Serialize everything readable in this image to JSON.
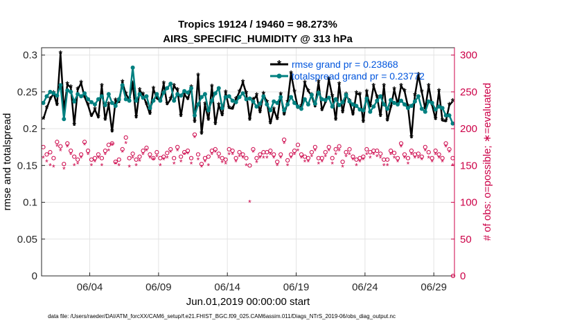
{
  "chart_data": {
    "type": "line",
    "title_line1": "Tropics 19124 / 19460 = 98.273%",
    "title_line2": "AIRS_SPECIFIC_HUMIDITY @ 313 hPa",
    "xlabel": "Jun.01,2019 00:00:00 start",
    "ylabel_left": "rmse and totalspread",
    "ylabel_right": "# of obs: o=possible; ∗=evaluated",
    "footnote": "data file: /Users/raeder/DAI/ATM_forcXX/CAM6_setup/f.e21.FHIST_BGC.f09_025.CAM6assim.011/Diags_NTrS_2019-06/obs_diag_output.nc",
    "xlim": [
      0.5,
      30.5
    ],
    "ylim_left": [
      0,
      0.31
    ],
    "ylim_right": [
      0,
      310
    ],
    "x_tick_values": [
      4,
      9,
      14,
      19,
      24,
      29
    ],
    "x_tick_labels": [
      "06/04",
      "06/09",
      "06/14",
      "06/19",
      "06/24",
      "06/29"
    ],
    "y_left_ticks": [
      "0",
      "0.05",
      "0.1",
      "0.15",
      "0.2",
      "0.25",
      "0.3"
    ],
    "y_left_tick_values": [
      0,
      0.05,
      0.1,
      0.15,
      0.2,
      0.25,
      0.3
    ],
    "y_right_ticks": [
      "0",
      "50",
      "100",
      "150",
      "200",
      "250",
      "300"
    ],
    "y_right_tick_values": [
      0,
      50,
      100,
      150,
      200,
      250,
      300
    ],
    "grid": true,
    "legend_position": "top-right",
    "x": [
      0.625,
      0.875,
      1.125,
      1.375,
      1.625,
      1.875,
      2.125,
      2.375,
      2.625,
      2.875,
      3.125,
      3.375,
      3.625,
      3.875,
      4.125,
      4.375,
      4.625,
      4.875,
      5.125,
      5.375,
      5.625,
      5.875,
      6.125,
      6.375,
      6.625,
      6.875,
      7.125,
      7.375,
      7.625,
      7.875,
      8.125,
      8.375,
      8.625,
      8.875,
      9.125,
      9.375,
      9.625,
      9.875,
      10.125,
      10.375,
      10.625,
      10.875,
      11.125,
      11.375,
      11.625,
      11.875,
      12.125,
      12.375,
      12.625,
      12.875,
      13.125,
      13.375,
      13.625,
      13.875,
      14.125,
      14.375,
      14.625,
      14.875,
      15.125,
      15.375,
      15.625,
      15.875,
      16.125,
      16.375,
      16.625,
      16.875,
      17.125,
      17.375,
      17.625,
      17.875,
      18.125,
      18.375,
      18.625,
      18.875,
      19.125,
      19.375,
      19.625,
      19.875,
      20.125,
      20.375,
      20.625,
      20.875,
      21.125,
      21.375,
      21.625,
      21.875,
      22.125,
      22.375,
      22.625,
      22.875,
      23.125,
      23.375,
      23.625,
      23.875,
      24.125,
      24.375,
      24.625,
      24.875,
      25.125,
      25.375,
      25.625,
      25.875,
      26.125,
      26.375,
      26.625,
      26.875,
      27.125,
      27.375,
      27.625,
      27.875,
      28.125,
      28.375,
      28.625,
      28.875,
      29.125,
      29.375,
      29.625,
      29.875,
      30.125,
      30.375
    ],
    "series": [
      {
        "name": "rmse",
        "legend": "rmse grand pr = 0.23868",
        "color": "#000000",
        "values": [
          0.213,
          0.228,
          0.24,
          0.248,
          0.232,
          0.302,
          0.225,
          0.26,
          0.256,
          0.205,
          0.253,
          0.262,
          0.243,
          0.232,
          0.217,
          0.226,
          0.215,
          0.258,
          0.212,
          0.233,
          0.196,
          0.238,
          0.236,
          0.263,
          0.247,
          0.24,
          0.261,
          0.215,
          0.252,
          0.246,
          0.233,
          0.22,
          0.254,
          0.241,
          0.238,
          0.261,
          0.233,
          0.24,
          0.258,
          0.252,
          0.217,
          0.247,
          0.24,
          0.256,
          0.209,
          0.272,
          0.193,
          0.233,
          0.212,
          0.257,
          0.206,
          0.232,
          0.218,
          0.249,
          0.228,
          0.227,
          0.24,
          0.25,
          0.263,
          0.248,
          0.212,
          0.239,
          0.245,
          0.222,
          0.247,
          0.236,
          0.207,
          0.226,
          0.213,
          0.246,
          0.219,
          0.236,
          0.275,
          0.25,
          0.228,
          0.23,
          0.262,
          0.251,
          0.245,
          0.23,
          0.263,
          0.225,
          0.236,
          0.267,
          0.244,
          0.212,
          0.26,
          0.222,
          0.246,
          0.237,
          0.219,
          0.248,
          0.246,
          0.209,
          0.25,
          0.23,
          0.258,
          0.243,
          0.217,
          0.258,
          0.211,
          0.229,
          0.253,
          0.233,
          0.258,
          0.251,
          0.23,
          0.188,
          0.245,
          0.273,
          0.25,
          0.227,
          0.258,
          0.232,
          0.213,
          0.251,
          0.211,
          0.21,
          0.232,
          0.237
        ]
      },
      {
        "name": "totalspread",
        "legend": "totalspread grand pr = 0.23772",
        "color": "#008080",
        "values": [
          0.235,
          0.244,
          0.25,
          0.248,
          0.245,
          0.259,
          0.213,
          0.252,
          0.25,
          0.237,
          0.247,
          0.244,
          0.248,
          0.24,
          0.236,
          0.233,
          0.24,
          0.244,
          0.232,
          0.247,
          0.235,
          0.231,
          0.24,
          0.259,
          0.24,
          0.238,
          0.283,
          0.238,
          0.247,
          0.242,
          0.244,
          0.228,
          0.238,
          0.247,
          0.238,
          0.249,
          0.255,
          0.261,
          0.238,
          0.247,
          0.245,
          0.251,
          0.249,
          0.255,
          0.218,
          0.233,
          0.243,
          0.247,
          0.225,
          0.238,
          0.248,
          0.255,
          0.228,
          0.243,
          0.244,
          0.238,
          0.236,
          0.243,
          0.248,
          0.24,
          0.241,
          0.237,
          0.23,
          0.234,
          0.244,
          0.233,
          0.225,
          0.237,
          0.235,
          0.243,
          0.225,
          0.233,
          0.243,
          0.235,
          0.23,
          0.227,
          0.24,
          0.233,
          0.246,
          0.234,
          0.249,
          0.24,
          0.239,
          0.242,
          0.23,
          0.24,
          0.232,
          0.236,
          0.246,
          0.237,
          0.233,
          0.231,
          0.226,
          0.225,
          0.241,
          0.223,
          0.23,
          0.238,
          0.244,
          0.233,
          0.227,
          0.239,
          0.235,
          0.233,
          0.238,
          0.233,
          0.228,
          0.231,
          0.237,
          0.244,
          0.227,
          0.223,
          0.237,
          0.235,
          0.226,
          0.23,
          0.228,
          0.218,
          0.218,
          0.207
        ]
      }
    ],
    "obs_possible": [
      175,
      165,
      168,
      160,
      182,
      176,
      152,
      180,
      170,
      162,
      158,
      165,
      182,
      170,
      158,
      160,
      165,
      160,
      170,
      178,
      180,
      155,
      158,
      172,
      188,
      160,
      166,
      158,
      162,
      170,
      174,
      165,
      160,
      168,
      160,
      162,
      167,
      172,
      160,
      175,
      162,
      168,
      170,
      160,
      192,
      165,
      152,
      160,
      162,
      170,
      172,
      166,
      160,
      158,
      172,
      170,
      160,
      168,
      165,
      160,
      150,
      172,
      160,
      165,
      168,
      168,
      170,
      165,
      155,
      165,
      185,
      157,
      165,
      170,
      178,
      165,
      162,
      160,
      168,
      175,
      160,
      160,
      168,
      175,
      160,
      172,
      176,
      155,
      168,
      172,
      162,
      158,
      160,
      162,
      172,
      168,
      170,
      170,
      166,
      158,
      158,
      170,
      167,
      160,
      180,
      165,
      160,
      170,
      165,
      166,
      162,
      175,
      168,
      160,
      170,
      165,
      160,
      180,
      172,
      160
    ],
    "obs_evaluated": [
      160,
      155,
      150,
      148,
      176,
      170,
      145,
      175,
      165,
      150,
      152,
      160,
      178,
      165,
      150,
      155,
      160,
      150,
      165,
      170,
      178,
      152,
      150,
      168,
      180,
      148,
      160,
      150,
      156,
      165,
      170,
      160,
      158,
      162,
      150,
      158,
      160,
      168,
      152,
      170,
      155,
      165,
      166,
      152,
      188,
      158,
      148,
      155,
      150,
      165,
      168,
      160,
      154,
      152,
      165,
      165,
      155,
      162,
      160,
      150,
      100,
      168,
      154,
      160,
      160,
      160,
      165,
      160,
      150,
      160,
      180,
      150,
      160,
      165,
      170,
      160,
      155,
      155,
      162,
      170,
      152,
      155,
      162,
      170,
      152,
      165,
      170,
      148,
      162,
      165,
      158,
      150,
      155,
      158,
      165,
      160,
      165,
      162,
      160,
      150,
      150,
      165,
      160,
      155,
      175,
      160,
      152,
      165,
      160,
      160,
      158,
      170,
      160,
      155,
      165,
      160,
      155,
      175,
      168,
      150
    ],
    "obs_outliers": [
      {
        "x": 30.4,
        "value": 0
      }
    ]
  }
}
